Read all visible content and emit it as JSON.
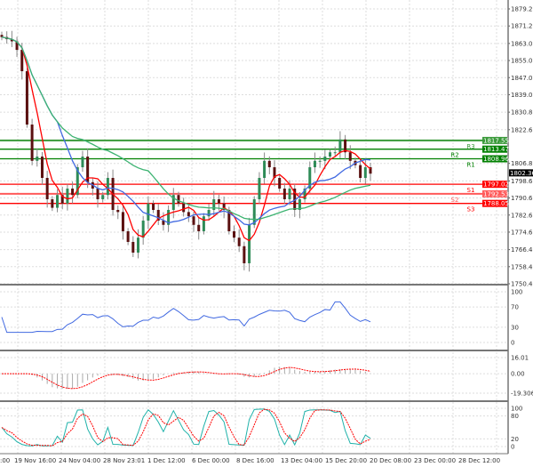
{
  "chart_data": [
    {
      "type": "candlestick",
      "title": "",
      "y_ticks": [
        "1879.20",
        "1871.20",
        "1863.00",
        "1855.00",
        "1847.00",
        "1839.00",
        "1830.80",
        "1822.60",
        "1806.80",
        "1798.60",
        "1790.60",
        "1782.60",
        "1774.60",
        "1766.40",
        "1758.40",
        "1750.40"
      ],
      "ylim": [
        1750.4,
        1879.2
      ],
      "x_ticks": [
        ":00",
        "19 Nov 16:00",
        "24 Nov 04:00",
        "28 Nov 23:01",
        "1 Dec 12:00",
        "6 Dec 00:00",
        "8 Dec 16:00",
        "13 Dec 04:00",
        "15 Dec 20:00",
        "20 Dec 08:00",
        "23 Dec 00:00",
        "28 Dec 12:00"
      ],
      "closes": [
        1866,
        1865,
        1864,
        1860,
        1850,
        1825,
        1808,
        1810,
        1800,
        1790,
        1786,
        1792,
        1788,
        1795,
        1792,
        1805,
        1810,
        1798,
        1795,
        1790,
        1792,
        1800,
        1785,
        1784,
        1775,
        1770,
        1765,
        1772,
        1780,
        1788,
        1785,
        1780,
        1778,
        1785,
        1792,
        1788,
        1784,
        1782,
        1778,
        1775,
        1782,
        1785,
        1790,
        1788,
        1785,
        1775,
        1772,
        1768,
        1760,
        1778,
        1790,
        1800,
        1808,
        1805,
        1800,
        1795,
        1790,
        1795,
        1785,
        1790,
        1795,
        1805,
        1808,
        1808,
        1810,
        1812,
        1812,
        1818,
        1812,
        1808,
        1806,
        1800,
        1805,
        1802
      ],
      "levels": [
        {
          "name": "R3",
          "value": "1817.55",
          "color": "#3a9a3a"
        },
        {
          "name": "R2",
          "value": "1813.47",
          "color": "#008000"
        },
        {
          "name": "R1",
          "value": "1808.96",
          "color": "#008000"
        },
        {
          "name": "S1",
          "value": "1797.02",
          "color": "#ff0000"
        },
        {
          "name": "S2",
          "value": "1792.53",
          "color": "#ff5a5a"
        },
        {
          "name": "S3",
          "value": "1788.05",
          "color": "#ff0000"
        }
      ],
      "current_price": "1802.36",
      "moving_averages": [
        {
          "color": "#ff0000"
        },
        {
          "color": "#4169e1"
        },
        {
          "color": "#3cb371"
        }
      ],
      "grid": true
    },
    {
      "type": "line",
      "indicator_colors": [
        "#4169e1"
      ],
      "y_ticks": [
        "100",
        "70",
        "30",
        "0"
      ],
      "ylim": [
        0,
        100
      ]
    },
    {
      "type": "bar",
      "y_ticks": [
        "16.01",
        "0.00",
        "-19.306"
      ],
      "ylim": [
        -19.306,
        16.01
      ]
    },
    {
      "type": "line",
      "indicator_colors": [
        "#20b2aa",
        "#ff0000"
      ],
      "y_ticks": [
        "100",
        "80",
        "20",
        "0"
      ],
      "ylim": [
        0,
        100
      ]
    }
  ]
}
